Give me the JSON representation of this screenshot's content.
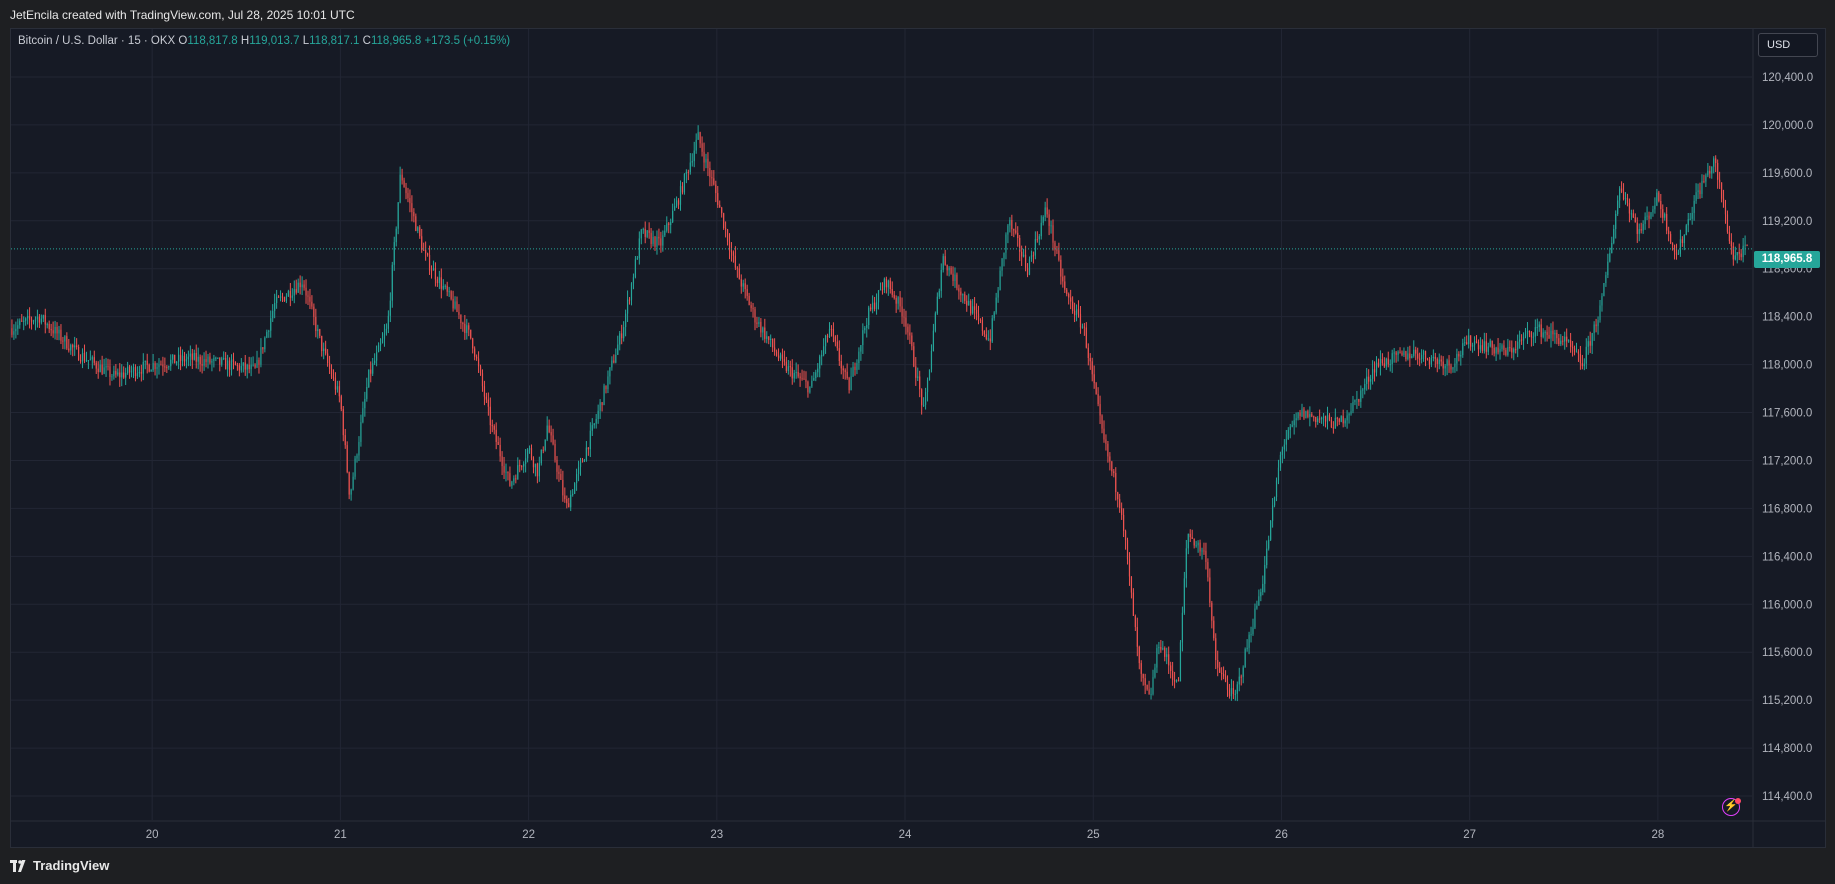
{
  "header": {
    "attribution": "JetEncila created with TradingView.com, Jul 28, 2025 10:01 UTC"
  },
  "legend": {
    "symbol": "Bitcoin / U.S. Dollar · 15 · OKX",
    "open_label": "O",
    "open": "118,817.8",
    "high_label": "H",
    "high": "119,013.7",
    "low_label": "L",
    "low": "118,817.1",
    "close_label": "C",
    "close": "118,965.8",
    "change": "+173.5 (+0.15%)"
  },
  "currency": "USD",
  "last_price_badge": "118,965.8",
  "footer": {
    "brand": "TradingView"
  },
  "colors": {
    "up": "#26a69a",
    "down": "#ef5350",
    "background": "#161a25",
    "grid": "#222634",
    "price_line": "#26a69a"
  },
  "chart_data": {
    "type": "candlestick",
    "interval": "15",
    "ylim": [
      114200,
      120800
    ],
    "xlim": [
      19.25,
      28.5
    ],
    "y_ticks": [
      "114,400.0",
      "114,800.0",
      "115,200.0",
      "115,600.0",
      "116,000.0",
      "116,400.0",
      "116,800.0",
      "117,200.0",
      "117,600.0",
      "118,000.0",
      "118,400.0",
      "118,800.0",
      "119,200.0",
      "119,600.0",
      "120,000.0",
      "120,400.0"
    ],
    "y_tick_values": [
      114400,
      114800,
      115200,
      115600,
      116000,
      116400,
      116800,
      117200,
      117600,
      118000,
      118400,
      118800,
      119200,
      119600,
      120000,
      120400
    ],
    "x_ticks": [
      "20",
      "21",
      "22",
      "23",
      "24",
      "25",
      "26",
      "27",
      "28"
    ],
    "x_tick_values": [
      20,
      21,
      22,
      23,
      24,
      25,
      26,
      27,
      28
    ],
    "last_price": 118965.8,
    "path_day": [
      19.25,
      19.4,
      19.6,
      19.8,
      20.0,
      20.2,
      20.4,
      20.55,
      20.65,
      20.8,
      20.9,
      21.0,
      21.05,
      21.15,
      21.25,
      21.32,
      21.45,
      21.6,
      21.7,
      21.8,
      21.9,
      22.0,
      22.05,
      22.1,
      22.2,
      22.35,
      22.5,
      22.6,
      22.7,
      22.8,
      22.9,
      23.0,
      23.1,
      23.2,
      23.35,
      23.5,
      23.6,
      23.7,
      23.8,
      23.9,
      24.0,
      24.1,
      24.2,
      24.3,
      24.45,
      24.55,
      24.65,
      24.75,
      24.85,
      24.95,
      25.05,
      25.15,
      25.25,
      25.3,
      25.35,
      25.45,
      25.5,
      25.6,
      25.65,
      25.75,
      25.9,
      26.0,
      26.1,
      26.3,
      26.4,
      26.5,
      26.7,
      26.9,
      27.0,
      27.2,
      27.35,
      27.5,
      27.6,
      27.7,
      27.8,
      27.9,
      28.0,
      28.1,
      28.2,
      28.3,
      28.4,
      28.48
    ],
    "path_price": [
      118300,
      118400,
      118100,
      117900,
      118000,
      118050,
      118000,
      117950,
      118500,
      118700,
      118150,
      117700,
      116900,
      117900,
      118300,
      119600,
      118900,
      118500,
      118200,
      117500,
      117000,
      117300,
      117100,
      117500,
      116800,
      117500,
      118300,
      119100,
      119000,
      119400,
      119900,
      119400,
      118800,
      118400,
      118000,
      117800,
      118300,
      117800,
      118400,
      118700,
      118400,
      117600,
      118900,
      118600,
      118200,
      119200,
      118800,
      119300,
      118600,
      118300,
      117400,
      116800,
      115400,
      115200,
      115700,
      115300,
      116600,
      116400,
      115500,
      115200,
      116200,
      117300,
      117600,
      117500,
      117700,
      118000,
      118100,
      118000,
      118200,
      118100,
      118300,
      118200,
      118000,
      118500,
      119500,
      119100,
      119400,
      118900,
      119400,
      119700,
      118900,
      118965.8
    ]
  }
}
